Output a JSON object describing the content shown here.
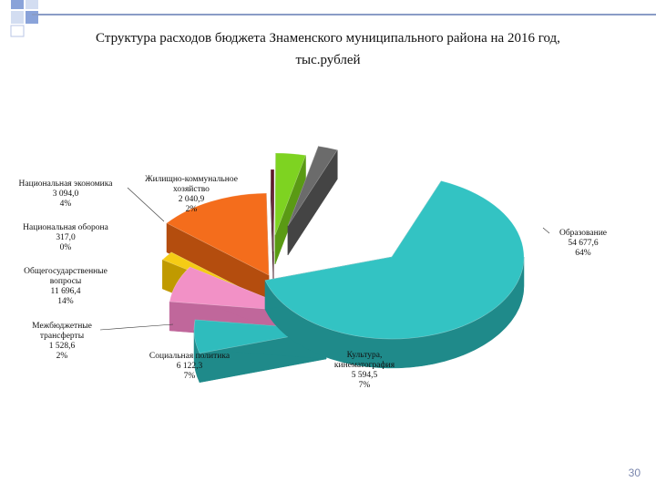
{
  "slide": {
    "title_line1": "Структура расходов бюджета Знаменского муниципального района на 2016 год,",
    "title_line2": "тыс.рублей",
    "page_number": "30"
  },
  "chart_data": {
    "type": "pie",
    "style": "3d-exploded",
    "slices": [
      {
        "name": "Образование",
        "value": 54677.6,
        "value_label": "54 677,6",
        "percent": "64%",
        "color": "#33c3c3",
        "side": "#1f8a8a"
      },
      {
        "name": "Культура, кинематография",
        "value": 5594.5,
        "value_label": "5 594,5",
        "percent": "7%",
        "color": "#2fbcbd",
        "side": "#1f8a8a"
      },
      {
        "name": "Социальная политика",
        "value": 6122.3,
        "value_label": "6 122,3",
        "percent": "7%",
        "color": "#f291c6",
        "side": "#c0679b"
      },
      {
        "name": "Межбюджетные трансферты",
        "value": 1528.6,
        "value_label": "1 528,6",
        "percent": "2%",
        "color": "#f5cc15",
        "side": "#c09a00"
      },
      {
        "name": "Общегосударственные вопросы",
        "value": 11696.4,
        "value_label": "11 696,4",
        "percent": "14%",
        "color": "#f46d1c",
        "side": "#b44d0e"
      },
      {
        "name": "Национальная оборона",
        "value": 317.0,
        "value_label": "317,0",
        "percent": "0%",
        "color": "#60172a",
        "side": "#3b0e1a"
      },
      {
        "name": "Национальная экономика",
        "value": 3094.0,
        "value_label": "3 094,0",
        "percent": "4%",
        "color": "#7ed321",
        "side": "#5a9a14"
      },
      {
        "name": "Жилищно-коммунальное хозяйство",
        "value": 2040.9,
        "value_label": "2 040,9",
        "percent": "2%",
        "color": "#6b6b6b",
        "side": "#444444"
      }
    ],
    "labels": {
      "education": {
        "lines": [
          "Образование",
          "54 677,6",
          "64%"
        ]
      },
      "culture": {
        "lines": [
          "Культура,",
          "кинематография",
          "5 594,5",
          "7%"
        ]
      },
      "social": {
        "lines": [
          "Социальная политика",
          "6 122,3",
          "7%"
        ]
      },
      "transfers": {
        "lines": [
          "Межбюджетные",
          "трансферты",
          "1 528,6",
          "2%"
        ]
      },
      "general": {
        "lines": [
          "Общегосударственные",
          "вопросы",
          "11 696,4",
          "14%"
        ]
      },
      "defense": {
        "lines": [
          "Национальная оборона",
          "317,0",
          "0%"
        ]
      },
      "economy": {
        "lines": [
          "Национальная экономика",
          "3 094,0",
          "4%"
        ]
      },
      "housing": {
        "lines": [
          "Жилищно-коммунальное",
          "хозяйство",
          "2 040,9",
          "2%"
        ]
      }
    }
  }
}
